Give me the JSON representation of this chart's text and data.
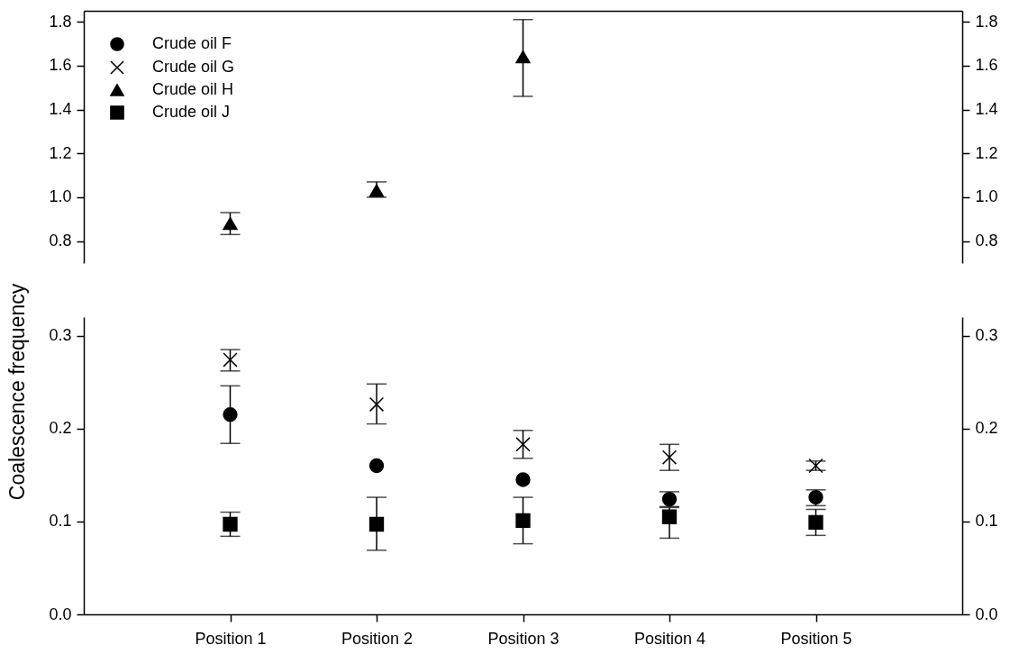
{
  "chart_data": [
    {
      "type": "scatter",
      "categories": [
        null,
        null,
        null,
        null,
        null
      ],
      "ylim": [
        0.7,
        1.85
      ],
      "yticks": [
        0.8,
        {
          "value": 1,
          "label": "1.0"
        },
        1.2,
        1.4,
        1.6,
        1.8
      ],
      "y2lim": [
        0.7,
        1.85
      ],
      "y2ticks": [
        0.8,
        {
          "value": 1,
          "label": "1.0"
        },
        1.2,
        1.4,
        1.6,
        1.8
      ],
      "tick_labels": "y",
      "grid": false,
      "legend": "top left",
      "series": [
        {
          "name": "Crude oil F",
          "color": "#000000",
          "marker": "circle",
          "values": [
            null,
            null,
            null,
            null,
            null
          ]
        },
        {
          "name": "Crude oil G",
          "color": "#000000",
          "marker": "cross",
          "values": [
            null,
            null,
            null,
            null,
            null
          ]
        },
        {
          "name": "Crude oil H",
          "color": "#000000",
          "marker": "triangle",
          "values": [
            0.88,
            1.03,
            1.64,
            null,
            null
          ],
          "errors": [
            [
              0.83,
              0.93
            ],
            [
              1.0,
              1.07
            ],
            [
              1.46,
              1.81
            ],
            null,
            null
          ]
        },
        {
          "name": "Crude oil J",
          "color": "#000000",
          "marker": "square",
          "values": [
            null,
            null,
            null,
            null,
            null
          ]
        }
      ]
    },
    {
      "type": "scatter",
      "categories": [
        "Position 1",
        "Position 2",
        "Position 3",
        "Position 4",
        "Position 5"
      ],
      "ylabel": "Coalescence frequency",
      "ylim": [
        0,
        0.32
      ],
      "yticks": [
        {
          "value": 0,
          "label": "0.0"
        },
        0.1,
        0.2,
        0.3
      ],
      "y2lim": [
        0,
        0.32
      ],
      "y2ticks": [
        {
          "value": 0,
          "label": "0.0"
        },
        0.1,
        0.2,
        0.3
      ],
      "grid": false,
      "series": [
        {
          "color": "#000000",
          "marker": "circle",
          "values": [
            0.215,
            0.16,
            0.145,
            0.124,
            0.126
          ],
          "errors": [
            [
              0.184,
              0.246
            ],
            null,
            null,
            [
              0.116,
              0.132
            ],
            [
              0.117,
              0.134
            ]
          ]
        },
        {
          "color": "#000000",
          "marker": "cross",
          "values": [
            0.274,
            0.226,
            0.183,
            0.169,
            0.16
          ],
          "errors": [
            [
              0.262,
              0.285
            ],
            [
              0.205,
              0.248
            ],
            [
              0.168,
              0.198
            ],
            [
              0.155,
              0.183
            ],
            [
              0.155,
              0.165
            ]
          ]
        },
        {
          "color": "#000000",
          "marker": "square",
          "values": [
            0.097,
            0.097,
            0.101,
            0.105,
            0.099
          ],
          "errors": [
            [
              0.084,
              0.11
            ],
            [
              0.069,
              0.126
            ],
            [
              0.076,
              0.126
            ],
            [
              0.082,
              0.115
            ],
            [
              0.085,
              0.113
            ]
          ]
        }
      ]
    }
  ]
}
